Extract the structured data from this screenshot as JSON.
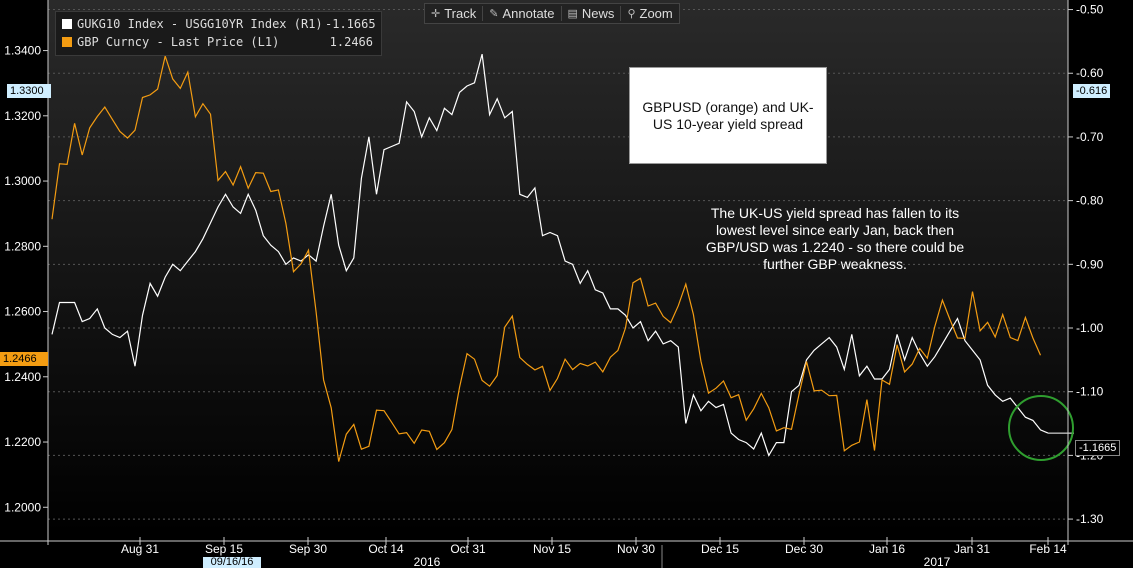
{
  "toolbar": {
    "track": "Track",
    "annotate": "Annotate",
    "news": "News",
    "zoom": "Zoom"
  },
  "legend": {
    "series1_label": "GUKG10 Index - USGG10YR Index (R1)",
    "series1_value": "-1.1665",
    "series2_label": "GBP Curncy - Last Price (L1)",
    "series2_value": "1.2466"
  },
  "title_box": "GBPUSD (orange) and UK-US 10-year yield spread",
  "annotation": "The UK-US yield spread has fallen to its lowest level since early Jan, back then GBP/USD was 1.2240 - so there could be further GBP weakness.",
  "tags": {
    "left_white": "1.3300",
    "left_orange": "1.2466",
    "right_white": "-0.616",
    "right_current": "-1.1665",
    "date": "09/16/16"
  },
  "colors": {
    "gbp": "#f39c12",
    "spread": "#ffffff",
    "circle": "#2f9e2f"
  },
  "chart_data": {
    "type": "line",
    "x_ticks": [
      "Aug 31",
      "Sep 15",
      "Sep 30",
      "Oct 14",
      "Oct 31",
      "Nov 15",
      "Nov 30",
      "Dec 15",
      "Dec 30",
      "Jan 16",
      "Jan 31",
      "Feb 14"
    ],
    "year_labels": [
      "2016",
      "2017"
    ],
    "left_axis": {
      "ticks": [
        "1.2000",
        "1.2200",
        "1.2400",
        "1.2600",
        "1.2800",
        "1.3000",
        "1.3200",
        "1.3400"
      ],
      "range": [
        1.1915,
        1.3555
      ]
    },
    "right_axis": {
      "ticks": [
        "-0.50",
        "-0.60",
        "-0.70",
        "-0.80",
        "-0.90",
        "-1.00",
        "-1.10",
        "-1.20",
        "-1.30"
      ],
      "range": [
        -1.325,
        -0.485
      ]
    },
    "series": [
      {
        "axis": "right",
        "values": [
          -1.01,
          -0.96,
          -0.96,
          -0.96,
          -0.99,
          -0.985,
          -0.97,
          -1.0,
          -1.01,
          -1.015,
          -1.005,
          -1.06,
          -0.98,
          -0.93,
          -0.95,
          -0.92,
          -0.9,
          -0.91,
          -0.895,
          -0.88,
          -0.86,
          -0.835,
          -0.81,
          -0.79,
          -0.81,
          -0.82,
          -0.79,
          -0.815,
          -0.855,
          -0.87,
          -0.88,
          -0.9,
          -0.89,
          -0.895,
          -0.885,
          -0.895,
          -0.84,
          -0.79,
          -0.87,
          -0.91,
          -0.89,
          -0.765,
          -0.7,
          -0.79,
          -0.72,
          -0.715,
          -0.71,
          -0.645,
          -0.66,
          -0.7,
          -0.67,
          -0.69,
          -0.655,
          -0.665,
          -0.63,
          -0.62,
          -0.615,
          -0.57,
          -0.665,
          -0.64,
          -0.67,
          -0.66,
          -0.79,
          -0.795,
          -0.78,
          -0.855,
          -0.85,
          -0.855,
          -0.895,
          -0.9,
          -0.93,
          -0.91,
          -0.94,
          -0.945,
          -0.97,
          -0.97,
          -0.98,
          -1.0,
          -0.99,
          -1.02,
          -1.005,
          -1.025,
          -1.02,
          -1.03,
          -1.15,
          -1.105,
          -1.13,
          -1.115,
          -1.125,
          -1.12,
          -1.165,
          -1.175,
          -1.18,
          -1.19,
          -1.165,
          -1.2,
          -1.18,
          -1.18,
          -1.1,
          -1.09,
          -1.05,
          -1.035,
          -1.025,
          -1.015,
          -1.03,
          -1.065,
          -1.01,
          -1.075,
          -1.06,
          -1.08,
          -1.08,
          -1.065,
          -1.01,
          -1.05,
          -1.015,
          -1.04,
          -1.06,
          -1.045,
          -1.025,
          -1.005,
          -0.985,
          -1.02,
          -1.035,
          -1.05,
          -1.09,
          -1.105,
          -1.115,
          -1.11,
          -1.125,
          -1.14,
          -1.145,
          -1.16,
          -1.165
        ]
      },
      {
        "axis": "left",
        "values": [
          1.2883,
          1.3053,
          1.3051,
          1.3177,
          1.308,
          1.3163,
          1.3198,
          1.3227,
          1.3189,
          1.3152,
          1.3132,
          1.3156,
          1.3256,
          1.3264,
          1.3282,
          1.3383,
          1.3313,
          1.3284,
          1.3334,
          1.3197,
          1.3237,
          1.3205,
          1.3002,
          1.3029,
          1.2988,
          1.3044,
          1.2978,
          1.3026,
          1.3024,
          1.2968,
          1.2973,
          1.287,
          1.2722,
          1.2746,
          1.2788,
          1.2599,
          1.239,
          1.2305,
          1.214,
          1.2224,
          1.2254,
          1.2178,
          1.2187,
          1.2298,
          1.2296,
          1.2261,
          1.2225,
          1.2229,
          1.2196,
          1.2237,
          1.2233,
          1.2177,
          1.2198,
          1.2238,
          1.2367,
          1.2471,
          1.2454,
          1.2389,
          1.2371,
          1.2404,
          1.2552,
          1.2586,
          1.2459,
          1.2438,
          1.2421,
          1.2432,
          1.2358,
          1.2395,
          1.2454,
          1.2422,
          1.2441,
          1.2433,
          1.2445,
          1.2415,
          1.246,
          1.2481,
          1.255,
          1.2688,
          1.2702,
          1.2617,
          1.2626,
          1.2585,
          1.2566,
          1.2618,
          1.2684,
          1.2591,
          1.2448,
          1.235,
          1.2365,
          1.2387,
          1.2336,
          1.2345,
          1.2267,
          1.2302,
          1.2349,
          1.2305,
          1.2234,
          1.2244,
          1.2239,
          1.2346,
          1.2447,
          1.2357,
          1.2359,
          1.2342,
          1.2343,
          1.2173,
          1.219,
          1.22,
          1.233,
          1.2174,
          1.239,
          1.2377,
          1.2498,
          1.2415,
          1.2439,
          1.2487,
          1.2457,
          1.2554,
          1.2635,
          1.2576,
          1.2519,
          1.2518,
          1.2661,
          1.2541,
          1.2567,
          1.2522,
          1.2591,
          1.252,
          1.2511,
          1.2582,
          1.2519,
          1.2466
        ]
      }
    ]
  }
}
